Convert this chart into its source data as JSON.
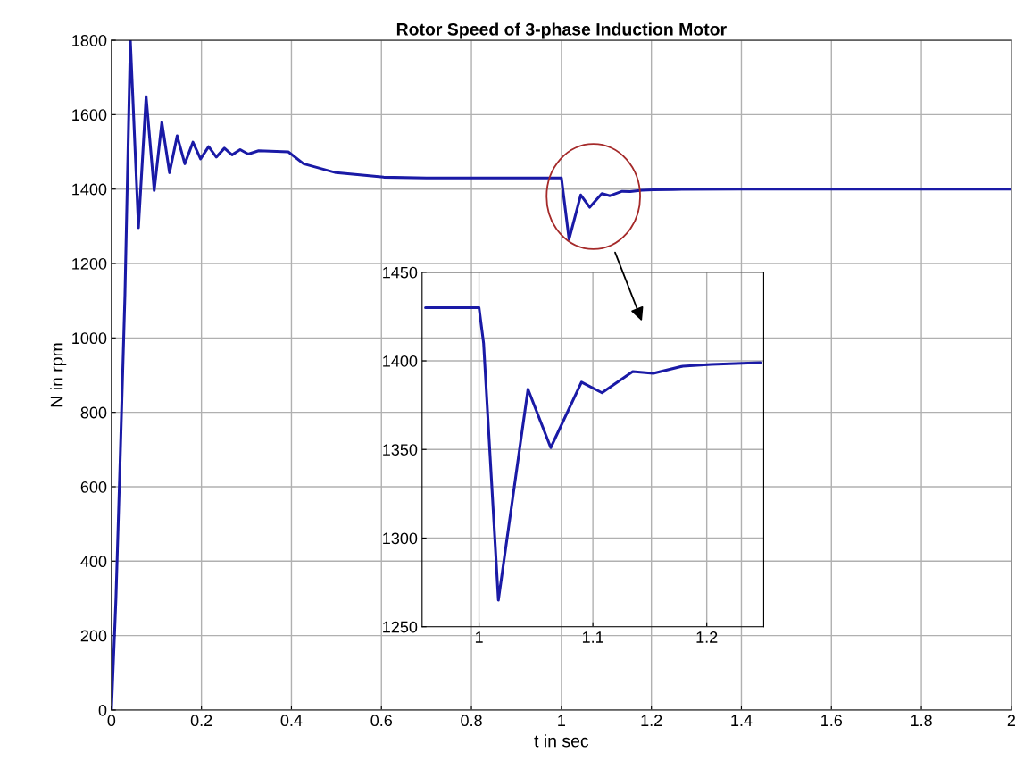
{
  "chart_data": [
    {
      "type": "line",
      "title": "Rotor Speed of 3-phase Induction Motor",
      "xlabel": "t in sec",
      "ylabel": "N in rpm",
      "xlim": [
        0,
        2
      ],
      "ylim": [
        0,
        1800
      ],
      "xticks": [
        0,
        0.2,
        0.4,
        0.6,
        0.8,
        1,
        1.2,
        1.4,
        1.6,
        1.8,
        2
      ],
      "yticks": [
        0,
        200,
        400,
        600,
        800,
        1000,
        1200,
        1400,
        1600,
        1800
      ],
      "grid": true,
      "series": [
        {
          "color": "#1a1aa6",
          "x": [
            0,
            0.01,
            0.02,
            0.03,
            0.042,
            0.06,
            0.077,
            0.095,
            0.112,
            0.129,
            0.146,
            0.163,
            0.181,
            0.198,
            0.216,
            0.233,
            0.251,
            0.268,
            0.286,
            0.304,
            0.327,
            0.393,
            0.427,
            0.499,
            0.605,
            0.7,
            0.8,
            0.9,
            1.0,
            1.017,
            1.043,
            1.063,
            1.09,
            1.108,
            1.135,
            1.153,
            1.179,
            1.204,
            1.247,
            1.4,
            1.6,
            1.8,
            2.0
          ],
          "values": [
            0,
            300,
            700,
            1116,
            1800,
            1296,
            1649,
            1396,
            1580,
            1444,
            1543,
            1468,
            1526,
            1481,
            1514,
            1486,
            1510,
            1492,
            1506,
            1494,
            1503,
            1500,
            1468,
            1444,
            1432,
            1430,
            1430,
            1430,
            1430,
            1265,
            1384,
            1351,
            1388,
            1382,
            1394,
            1393,
            1397,
            1398,
            1399,
            1400,
            1400,
            1400,
            1400
          ]
        }
      ]
    },
    {
      "type": "line",
      "xlim": [
        0.95,
        1.25
      ],
      "ylim": [
        1250,
        1450
      ],
      "xticks": [
        1,
        1.1,
        1.2
      ],
      "yticks": [
        1250,
        1300,
        1350,
        1400,
        1450
      ],
      "grid": true,
      "series": [
        {
          "color": "#1a1aa6",
          "x": [
            0.953,
            1.0,
            1.004,
            1.017,
            1.043,
            1.063,
            1.09,
            1.108,
            1.135,
            1.153,
            1.179,
            1.204,
            1.247
          ],
          "values": [
            1430,
            1430,
            1410,
            1265,
            1384,
            1351,
            1388,
            1382,
            1394,
            1393,
            1397,
            1398,
            1399
          ]
        }
      ]
    }
  ]
}
